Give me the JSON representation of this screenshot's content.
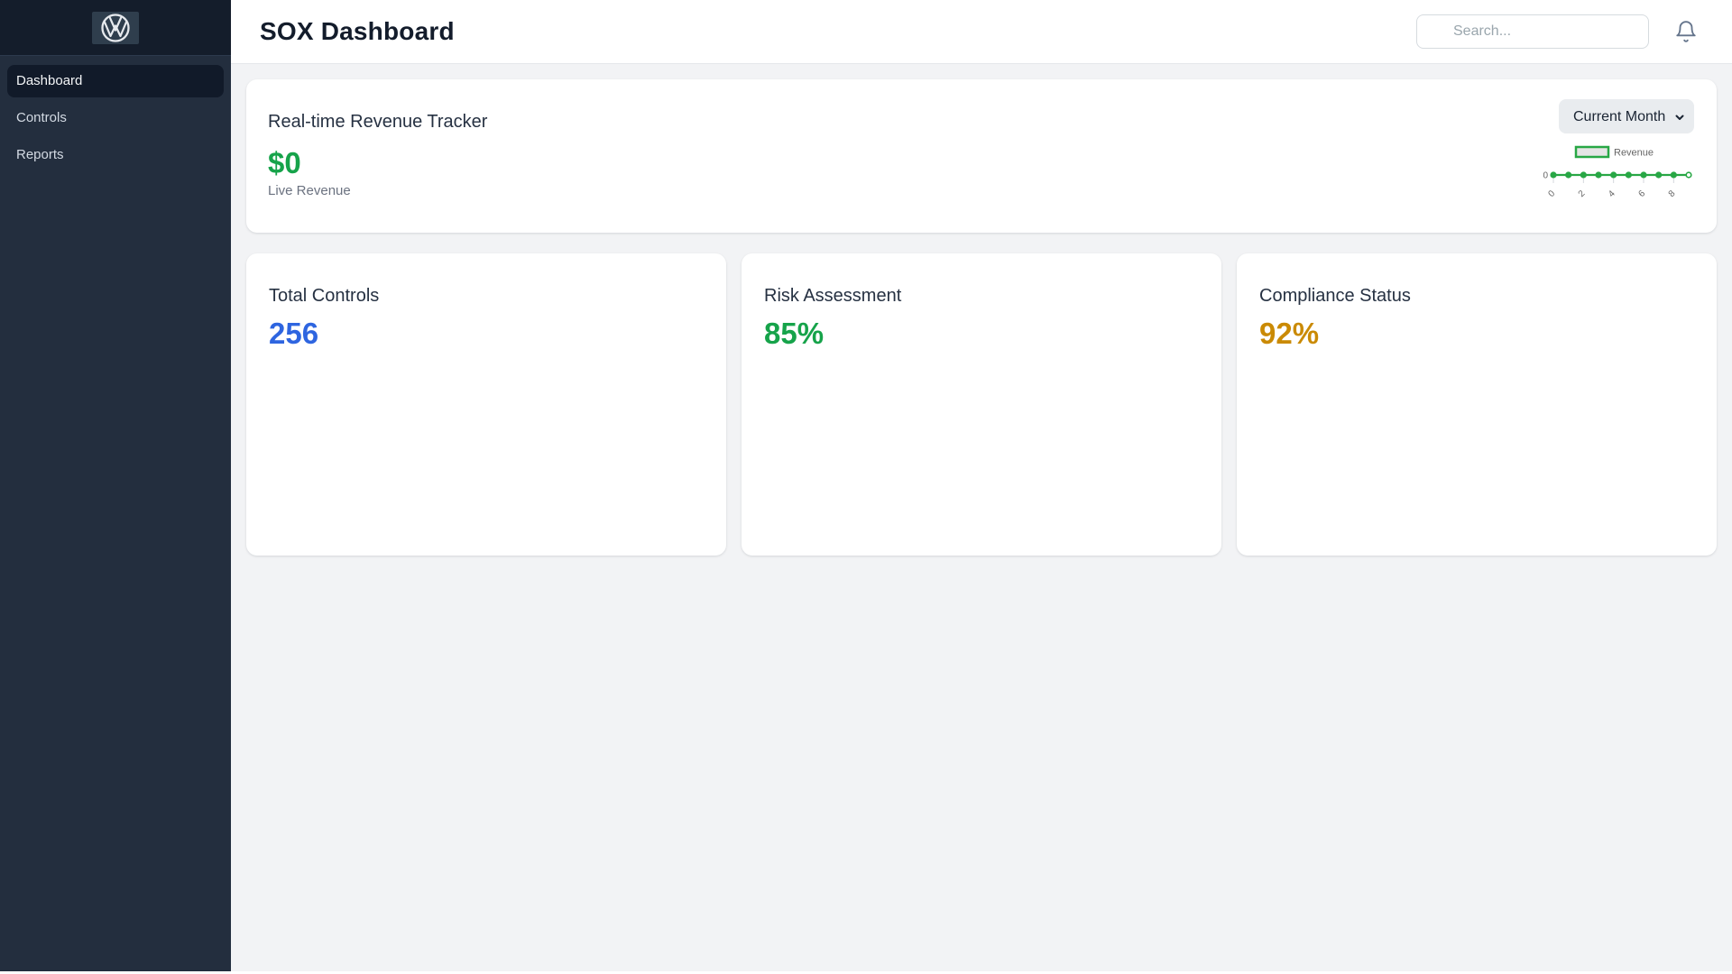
{
  "sidebar": {
    "logo": "vw-logo",
    "items": [
      {
        "label": "Dashboard",
        "active": true
      },
      {
        "label": "Controls",
        "active": false
      },
      {
        "label": "Reports",
        "active": false
      }
    ]
  },
  "header": {
    "title": "SOX Dashboard",
    "search": {
      "placeholder": "Search...",
      "value": ""
    }
  },
  "revenue_tracker": {
    "title": "Real-time Revenue Tracker",
    "live_value": "$0",
    "live_label": "Live Revenue",
    "period_selected": "Current Month",
    "period_options": [
      "Current Month"
    ]
  },
  "chart_data": {
    "type": "line",
    "title": "",
    "x": [
      0,
      1,
      2,
      3,
      4,
      5,
      6,
      7,
      8,
      9
    ],
    "series": [
      {
        "name": "Revenue",
        "values": [
          0,
          0,
          0,
          0,
          0,
          0,
          0,
          0,
          0,
          0
        ]
      }
    ],
    "x_tick_labels_shown": [
      "0",
      "2",
      "4",
      "6",
      "8"
    ],
    "y_tick_labels_shown": [
      "0"
    ],
    "ylim": [
      0,
      1
    ],
    "grid": false,
    "legend_position": "top",
    "line_color": "#28a745",
    "legend_fill": "rgba(0,0,0,0.1)",
    "tick_color": "#666666",
    "last_point_hollow": true
  },
  "stats": [
    {
      "title": "Total Controls",
      "value": "256",
      "color": "#2e65e0"
    },
    {
      "title": "Risk Assessment",
      "value": "85%",
      "color": "#16a34a"
    },
    {
      "title": "Compliance Status",
      "value": "92%",
      "color": "#ca8a04"
    }
  ],
  "colors": {
    "sidebar_bg": "#232e3e",
    "sidebar_band_bg": "#141d2b",
    "active_item_bg": "#111a29",
    "content_bg": "#f2f3f5",
    "accent_green": "#16a34a",
    "accent_blue": "#2e65e0",
    "accent_amber": "#ca8a04"
  }
}
